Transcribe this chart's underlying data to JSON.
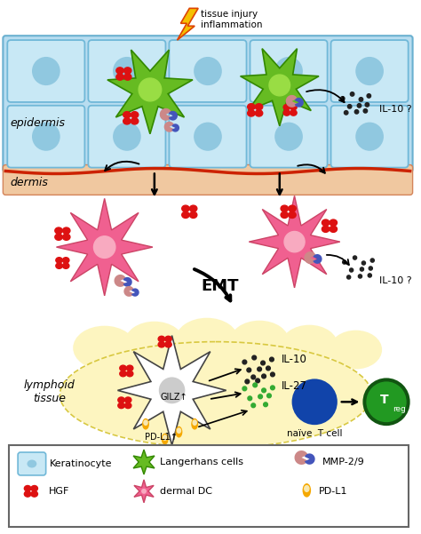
{
  "bg_color": "#ffffff",
  "epidermis_color": "#b8ddf0",
  "epidermis_border_color": "#6ab0d0",
  "dermis_color": "#f0c8a0",
  "dermis_border_color": "#d4845a",
  "dermis_red_line": "#cc2200",
  "cell_fill_color": "#c8e8f5",
  "cell_outline_color": "#70b8d8",
  "cell_nucleus_color": "#90c8e0",
  "langerhans_color": "#66bb22",
  "langerhans_nucleus_color": "#99dd44",
  "dermal_dc_color": "#f06090",
  "dermal_dc_nucleus_color": "#f8aac0",
  "hgf_color": "#dd1111",
  "mmp_color1": "#cc8888",
  "mmp_color2": "#4455bb",
  "il10_dot_color": "#222222",
  "il27_dot_color": "#33aa33",
  "pdl1_color": "#f5a800",
  "naive_t_color": "#1144aa",
  "treg_color": "#229922",
  "treg_border_color": "#115511",
  "lymphoid_color": "#fdf5c0",
  "lymphoid_border_color": "#d8c840",
  "text_color": "#111111",
  "epidermis_label": "epidermis",
  "dermis_label": "dermis",
  "lymphoid_label": "lymphoid\ntissue",
  "emt_label": "EMT",
  "tissue_injury_label": "tissue injury\ninflammation",
  "il10_label": "IL-10 ?",
  "il10_label2": "IL-10 ?",
  "il10_lymph_label": "IL-10",
  "il27_label": "IL-27",
  "gilz_label": "GILZ↑",
  "pdl1_label": "PD-L1↑",
  "naive_label": "naïve  T cell",
  "treg_label_main": "T",
  "treg_label_sub": "reg"
}
